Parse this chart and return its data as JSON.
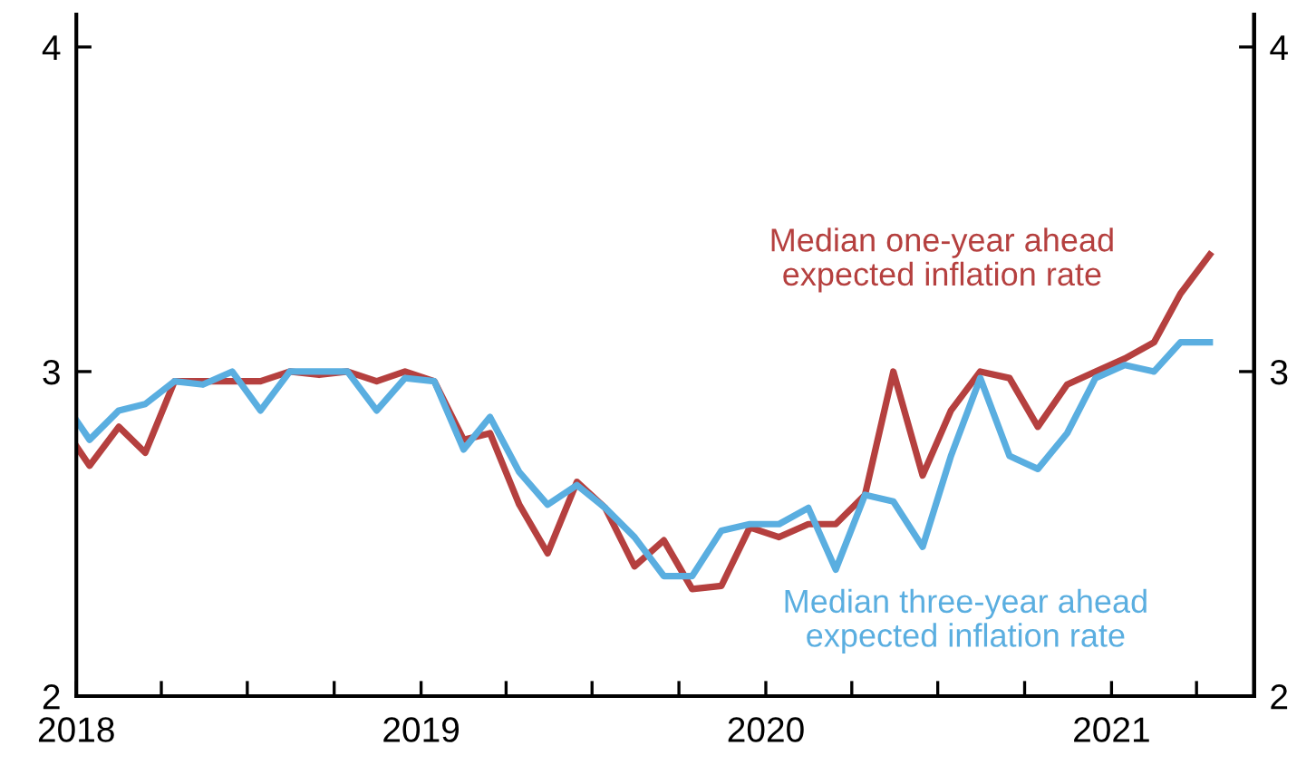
{
  "chart_data": {
    "type": "line",
    "x": [
      "2018-01-01",
      "2018-01-15",
      "2018-02-15",
      "2018-03-15",
      "2018-04-15",
      "2018-05-15",
      "2018-06-15",
      "2018-07-15",
      "2018-08-15",
      "2018-09-15",
      "2018-10-15",
      "2018-11-15",
      "2018-12-15",
      "2019-01-15",
      "2019-02-15",
      "2019-03-15",
      "2019-04-15",
      "2019-05-15",
      "2019-06-15",
      "2019-07-15",
      "2019-08-15",
      "2019-09-15",
      "2019-10-15",
      "2019-11-15",
      "2019-12-15",
      "2020-01-15",
      "2020-02-15",
      "2020-03-15",
      "2020-04-15",
      "2020-05-15",
      "2020-06-15",
      "2020-07-15",
      "2020-08-15",
      "2020-09-15",
      "2020-10-15",
      "2020-11-15",
      "2020-12-15",
      "2021-01-15",
      "2021-02-15",
      "2021-03-15",
      "2021-04-15"
    ],
    "series": [
      {
        "name": "Median one-year ahead\nexpected inflation rate",
        "color": "#b5403f",
        "values": [
          2.77,
          2.71,
          2.83,
          2.75,
          2.97,
          2.97,
          2.97,
          2.97,
          3.0,
          2.99,
          3.0,
          2.97,
          3.0,
          2.97,
          2.79,
          2.81,
          2.59,
          2.44,
          2.66,
          2.58,
          2.4,
          2.48,
          2.33,
          2.34,
          2.52,
          2.49,
          2.53,
          2.53,
          2.62,
          3.0,
          2.68,
          2.88,
          3.0,
          2.98,
          2.83,
          2.96,
          3.0,
          3.04,
          3.09,
          3.24,
          3.36
        ]
      },
      {
        "name": "Median three-year ahead\nexpected inflation rate",
        "color": "#5aaee0",
        "values": [
          2.85,
          2.79,
          2.88,
          2.9,
          2.97,
          2.96,
          3.0,
          2.88,
          3.0,
          3.0,
          3.0,
          2.88,
          2.98,
          2.97,
          2.76,
          2.86,
          2.69,
          2.59,
          2.65,
          2.58,
          2.49,
          2.37,
          2.37,
          2.51,
          2.53,
          2.53,
          2.58,
          2.39,
          2.62,
          2.6,
          2.46,
          2.74,
          2.98,
          2.74,
          2.7,
          2.81,
          2.98,
          3.02,
          3.0,
          3.09,
          3.09
        ]
      }
    ],
    "xlim": [
      "2018-01-01",
      "2021-06-01"
    ],
    "xticks": [
      {
        "value": "2018-01-01",
        "label": "2018"
      },
      {
        "value": "2018-04-01",
        "label": null
      },
      {
        "value": "2018-07-01",
        "label": null
      },
      {
        "value": "2018-10-01",
        "label": null
      },
      {
        "value": "2019-01-01",
        "label": "2019"
      },
      {
        "value": "2019-04-01",
        "label": null
      },
      {
        "value": "2019-07-01",
        "label": null
      },
      {
        "value": "2019-10-01",
        "label": null
      },
      {
        "value": "2020-01-01",
        "label": "2020"
      },
      {
        "value": "2020-04-01",
        "label": null
      },
      {
        "value": "2020-07-01",
        "label": null
      },
      {
        "value": "2020-10-01",
        "label": null
      },
      {
        "value": "2021-01-01",
        "label": "2021"
      },
      {
        "value": "2021-04-01",
        "label": null
      }
    ],
    "ylim": [
      2,
      4.1
    ],
    "yticks": [
      2,
      3,
      4
    ],
    "y2lim": [
      2,
      4.1
    ],
    "y2ticks": [
      2,
      3,
      4
    ],
    "grid": false,
    "legend": false
  }
}
